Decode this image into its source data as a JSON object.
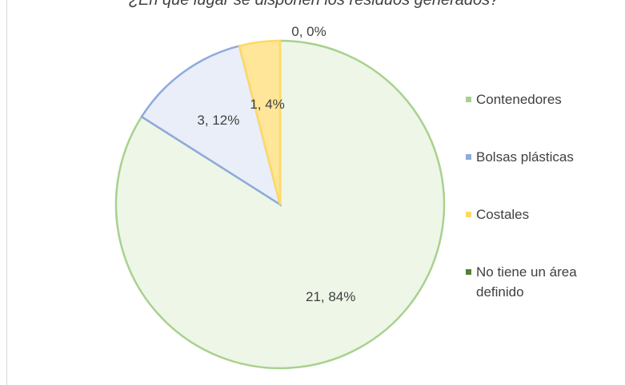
{
  "chart_data": {
    "type": "pie",
    "title": "¿En qué lugar se disponen los residuos generados?",
    "categories": [
      "Contenedores",
      "Bolsas plásticas",
      "Costales",
      "No tiene un área definido"
    ],
    "values": [
      21,
      3,
      1,
      0
    ],
    "value_labels": [
      "21, 84%",
      "3, 12%",
      "1, 4%",
      "0, 0%"
    ],
    "colors": [
      "#a9d18e",
      "#8faadc",
      "#ffd966",
      "#548235"
    ],
    "legend": "right"
  }
}
